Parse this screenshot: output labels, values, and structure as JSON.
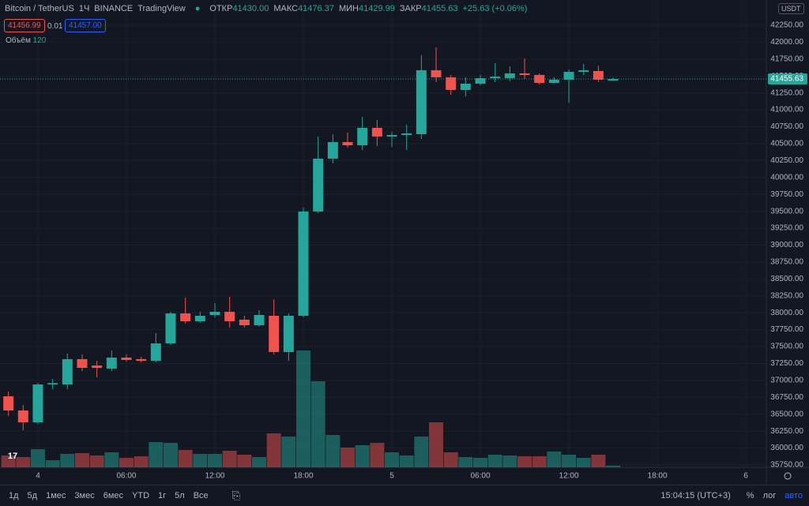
{
  "header": {
    "symbol": "Bitcoin / TetherUS",
    "interval": "1Ч",
    "exchange": "BINANCE",
    "source": "TradingView",
    "open_label": "ОТКР",
    "open": "41430.00",
    "high_label": "МАКС",
    "high": "41476.37",
    "low_label": "МИН",
    "low": "41429.99",
    "close_label": "ЗАКР",
    "close": "41455.63",
    "change": "+25.63 (+0.06%)",
    "bid": "41456.99",
    "spread": "0.01",
    "ask": "41457.00",
    "volume_label": "Объём",
    "currency": "USDT"
  },
  "chart_data": {
    "type": "candlestick",
    "x": [
      -2,
      -1,
      0,
      1,
      2,
      3,
      4,
      5,
      6,
      7,
      8,
      9,
      10,
      11,
      12,
      13,
      14,
      15,
      16,
      17,
      18,
      19,
      20,
      21,
      22,
      23,
      24,
      25,
      26,
      27,
      28,
      29,
      30,
      31,
      32,
      33,
      34,
      35,
      36,
      37,
      38,
      39
    ],
    "open": [
      36765,
      36555,
      36380,
      36940,
      36940,
      37314,
      37220,
      37174,
      37337,
      37314,
      37290,
      37547,
      37990,
      37874,
      37967,
      38014,
      37897,
      37815,
      37955,
      37419,
      37955,
      39496,
      40278,
      40523,
      40476,
      40733,
      40605,
      40628,
      40640,
      41585,
      41480,
      41293,
      41386,
      41468,
      41468,
      41538,
      41515,
      41398,
      41445,
      41561,
      41573,
      41430
    ],
    "high": [
      36835,
      36636,
      36963,
      37020,
      37395,
      37384,
      37290,
      37442,
      37384,
      37349,
      37699,
      38014,
      38224,
      38014,
      38142,
      38236,
      37955,
      38037,
      38200,
      37990,
      39554,
      40605,
      40640,
      40663,
      40896,
      40850,
      40675,
      40780,
      41807,
      41923,
      41515,
      41480,
      41515,
      41690,
      41643,
      41760,
      41538,
      41480,
      41596,
      41678,
      41655,
      41476.37
    ],
    "low": [
      36473,
      36263,
      36356,
      36870,
      36870,
      37139,
      37045,
      37139,
      37279,
      37267,
      37267,
      37524,
      37839,
      37850,
      37932,
      37780,
      37780,
      37792,
      37384,
      37290,
      37932,
      39473,
      40208,
      40441,
      40406,
      40464,
      40453,
      40406,
      40570,
      41410,
      41223,
      41200,
      41363,
      41410,
      41421,
      41456,
      41375,
      41386,
      41106,
      41515,
      41410,
      41429.99
    ],
    "close": [
      36555,
      36380,
      36940,
      36960,
      37314,
      37185,
      37185,
      37337,
      37302,
      37290,
      37547,
      37990,
      37874,
      37955,
      38014,
      37874,
      37815,
      37967,
      37419,
      37955,
      39496,
      40278,
      40523,
      40476,
      40733,
      40605,
      40628,
      40651,
      41585,
      41480,
      41293,
      41386,
      41468,
      41491,
      41538,
      41515,
      41398,
      41445,
      41561,
      41585,
      41445,
      41455.63
    ],
    "volume": [
      900,
      780,
      1380,
      540,
      1020,
      1080,
      900,
      1140,
      720,
      840,
      1920,
      1860,
      1320,
      1020,
      1020,
      1260,
      960,
      780,
      2580,
      2340,
      8880,
      6540,
      2460,
      1500,
      1680,
      1860,
      1140,
      900,
      2340,
      3420,
      1140,
      780,
      720,
      960,
      900,
      840,
      840,
      1200,
      960,
      720,
      960,
      120
    ],
    "up_color": "#26a69a",
    "down_color": "#ef5350",
    "xlim": [
      -2.57,
      49.39
    ],
    "ylim": [
      35715,
      42623
    ],
    "xticks": [
      {
        "value": 0,
        "label": "4"
      },
      {
        "value": 6,
        "label": "06:00"
      },
      {
        "value": 12,
        "label": "12:00"
      },
      {
        "value": 18,
        "label": "18:00"
      },
      {
        "value": 24,
        "label": "5"
      },
      {
        "value": 30,
        "label": "06:00"
      },
      {
        "value": 36,
        "label": "12:00"
      },
      {
        "value": 42,
        "label": "18:00"
      },
      {
        "value": 48,
        "label": "6"
      }
    ],
    "yticks": [
      {
        "value": 42250,
        "label": "42250.00"
      },
      {
        "value": 42000,
        "label": "42000.00"
      },
      {
        "value": 41750,
        "label": "41750.00"
      },
      {
        "value": 41500,
        "label": "41500.00"
      },
      {
        "value": 41250,
        "label": "41250.00"
      },
      {
        "value": 41000,
        "label": "41000.00"
      },
      {
        "value": 40750,
        "label": "40750.00"
      },
      {
        "value": 40500,
        "label": "40500.00"
      },
      {
        "value": 40250,
        "label": "40250.00"
      },
      {
        "value": 40000,
        "label": "40000.00"
      },
      {
        "value": 39750,
        "label": "39750.00"
      },
      {
        "value": 39500,
        "label": "39500.00"
      },
      {
        "value": 39250,
        "label": "39250.00"
      },
      {
        "value": 39000,
        "label": "39000.00"
      },
      {
        "value": 38750,
        "label": "38750.00"
      },
      {
        "value": 38500,
        "label": "38500.00"
      },
      {
        "value": 38250,
        "label": "38250.00"
      },
      {
        "value": 38000,
        "label": "38000.00"
      },
      {
        "value": 37750,
        "label": "37750.00"
      },
      {
        "value": 37500,
        "label": "37500.00"
      },
      {
        "value": 37250,
        "label": "37250.00"
      },
      {
        "value": 37000,
        "label": "37000.00"
      },
      {
        "value": 36750,
        "label": "36750.00"
      },
      {
        "value": 36500,
        "label": "36500.00"
      },
      {
        "value": 36250,
        "label": "36250.00"
      },
      {
        "value": 36000,
        "label": "36000.00"
      },
      {
        "value": 35750,
        "label": "35750.00"
      }
    ],
    "grid": true
  },
  "toolbar": {
    "ranges": [
      "1д",
      "5д",
      "1мес",
      "3мес",
      "6мес",
      "YTD",
      "1г",
      "5л",
      "Все"
    ],
    "clock": "15:04:15 (UTC+3)",
    "percent": "%",
    "log": "лог",
    "auto": "авто"
  }
}
